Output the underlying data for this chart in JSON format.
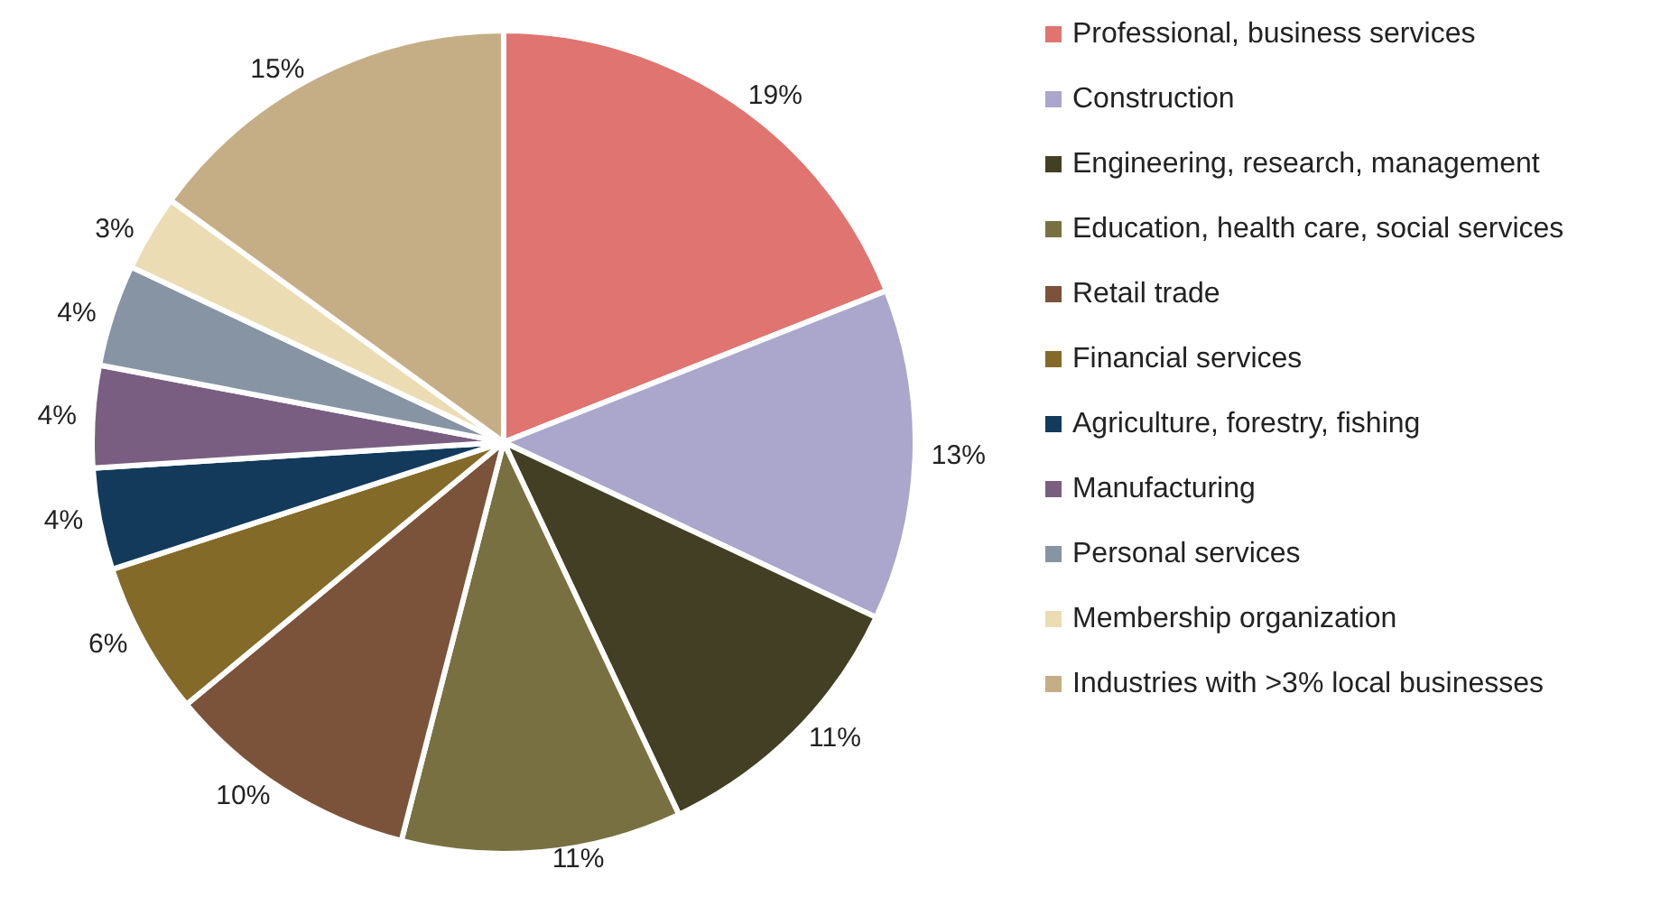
{
  "chart_data": {
    "type": "pie",
    "categories": [
      "Professional, business services",
      "Construction",
      "Engineering, research, management",
      "Education, health care, social services",
      "Retail trade",
      "Financial services",
      "Agriculture, forestry, fishing",
      "Manufacturing",
      "Personal services",
      "Membership organization",
      "Industries with >3% local businesses"
    ],
    "values": [
      19,
      13,
      11,
      11,
      10,
      6,
      4,
      4,
      4,
      3,
      15
    ],
    "value_labels": [
      "19%",
      "13%",
      "11%",
      "11%",
      "10%",
      "6%",
      "4%",
      "4%",
      "4%",
      "3%",
      "15%"
    ],
    "colors": [
      "#e07470",
      "#aba6cc",
      "#433f24",
      "#787040",
      "#7b533a",
      "#846a28",
      "#133a5a",
      "#7a5e82",
      "#8794a4",
      "#ecdcb4",
      "#c5ae86"
    ],
    "legend": "right"
  }
}
